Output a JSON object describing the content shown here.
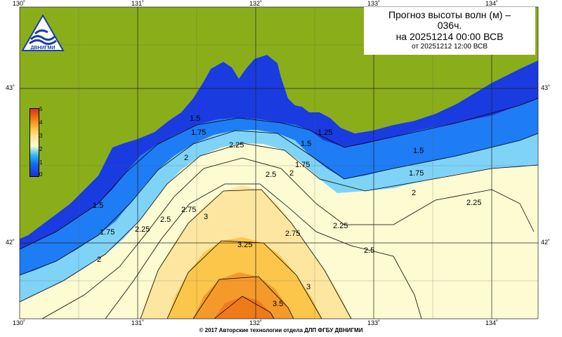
{
  "title": {
    "line1": "Прогноз высоты волн (м) –",
    "line2": "036ч.",
    "line3": "на 20251214 00:00 ВСВ",
    "line4": "от 20251212 12:00 ВСВ"
  },
  "longitude_ticks": [
    "130˚",
    "131˚",
    "132˚",
    "133˚",
    "134˚"
  ],
  "latitude_ticks": [
    "43˚",
    "42˚"
  ],
  "legend": {
    "labels": [
      "5",
      "4",
      "3",
      "2",
      "1",
      "0"
    ],
    "colors": [
      "#d9310a",
      "#f58a1e",
      "#fbc64a",
      "#fdfbd2",
      "#2bb3f5",
      "#1a2fd6"
    ]
  },
  "contour_labels": [
    "1.5",
    "1.75",
    "2",
    "2.25",
    "2.5",
    "2.75",
    "3",
    "3.25",
    "3.5",
    "1.25"
  ],
  "logo_text": "ДВНИГМИ",
  "footer": "© 2017 Авторские технологии отдела ДЛП ФГБУ ДВНИГМИ",
  "colors": {
    "land": "#8aae1a",
    "deep_blue": "#1a2fd6",
    "mid_blue": "#1a6ff5",
    "light_blue": "#7fd3f7",
    "pale": "#fdfbd2",
    "yellow": "#fde7a0",
    "orange": "#fbc64a"
  }
}
